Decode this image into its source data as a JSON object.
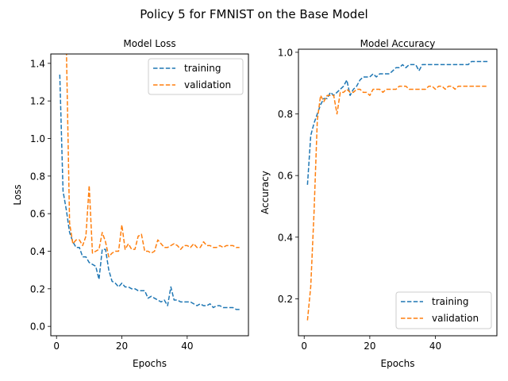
{
  "figure": {
    "suptitle": "Policy 5 for FMNIST on the Base Model"
  },
  "colors": {
    "training": "#1f77b4",
    "validation": "#ff7f0e"
  },
  "chart_data": [
    {
      "type": "line",
      "title": "Model Loss",
      "xlabel": "Epochs",
      "ylabel": "Loss",
      "xlim": [
        -1.75,
        58.75
      ],
      "ylim": [
        -0.05,
        1.45
      ],
      "xticks": [
        0,
        20,
        40
      ],
      "yticks": [
        0.0,
        0.2,
        0.4,
        0.6,
        0.8,
        1.0,
        1.2,
        1.4
      ],
      "ytick_labels": [
        "0.0",
        "0.2",
        "0.4",
        "0.6",
        "0.8",
        "1.0",
        "1.2",
        "1.4"
      ],
      "legend_position": "top-right",
      "grid": false,
      "series": [
        {
          "name": "training",
          "color": "#1f77b4",
          "x": [
            1,
            2,
            3,
            4,
            5,
            6,
            7,
            8,
            9,
            10,
            11,
            12,
            13,
            14,
            15,
            16,
            17,
            18,
            19,
            20,
            21,
            22,
            23,
            24,
            25,
            26,
            27,
            28,
            29,
            30,
            31,
            32,
            33,
            34,
            35,
            36,
            37,
            38,
            39,
            40,
            41,
            42,
            43,
            44,
            45,
            46,
            47,
            48,
            49,
            50,
            51,
            52,
            53,
            54,
            55,
            56
          ],
          "values": [
            1.34,
            0.72,
            0.62,
            0.5,
            0.45,
            0.42,
            0.42,
            0.37,
            0.37,
            0.34,
            0.33,
            0.32,
            0.25,
            0.41,
            0.41,
            0.3,
            0.24,
            0.23,
            0.21,
            0.23,
            0.21,
            0.21,
            0.2,
            0.2,
            0.19,
            0.19,
            0.19,
            0.15,
            0.16,
            0.15,
            0.14,
            0.13,
            0.14,
            0.11,
            0.21,
            0.14,
            0.14,
            0.13,
            0.13,
            0.13,
            0.13,
            0.12,
            0.11,
            0.12,
            0.11,
            0.11,
            0.12,
            0.1,
            0.11,
            0.11,
            0.1,
            0.1,
            0.1,
            0.1,
            0.09,
            0.09
          ]
        },
        {
          "name": "validation",
          "color": "#ff7f0e",
          "x": [
            2,
            3,
            4,
            5,
            6,
            7,
            8,
            9,
            10,
            11,
            12,
            13,
            14,
            15,
            16,
            17,
            18,
            19,
            20,
            21,
            22,
            23,
            24,
            25,
            26,
            27,
            28,
            29,
            30,
            31,
            32,
            33,
            34,
            35,
            36,
            37,
            38,
            39,
            40,
            41,
            42,
            43,
            44,
            45,
            46,
            47,
            48,
            49,
            50,
            51,
            52,
            53,
            54,
            55,
            56
          ],
          "values": [
            2.1,
            1.5,
            0.55,
            0.44,
            0.46,
            0.46,
            0.43,
            0.48,
            0.75,
            0.39,
            0.4,
            0.41,
            0.5,
            0.45,
            0.37,
            0.39,
            0.4,
            0.4,
            0.54,
            0.41,
            0.44,
            0.41,
            0.41,
            0.48,
            0.49,
            0.4,
            0.4,
            0.39,
            0.4,
            0.46,
            0.44,
            0.42,
            0.42,
            0.43,
            0.44,
            0.43,
            0.41,
            0.43,
            0.43,
            0.42,
            0.44,
            0.42,
            0.42,
            0.45,
            0.43,
            0.43,
            0.42,
            0.42,
            0.43,
            0.42,
            0.43,
            0.43,
            0.43,
            0.42,
            0.42
          ]
        }
      ]
    },
    {
      "type": "line",
      "title": "Model Accuracy",
      "xlabel": "Epochs",
      "ylabel": "Accuracy",
      "xlim": [
        -1.75,
        58.75
      ],
      "ylim": [
        0.08,
        1.01
      ],
      "xticks": [
        0,
        20,
        40
      ],
      "yticks": [
        0.2,
        0.4,
        0.6,
        0.8,
        1.0
      ],
      "ytick_labels": [
        "0.2",
        "0.4",
        "0.6",
        "0.8",
        "1.0"
      ],
      "legend_position": "bottom-right",
      "grid": false,
      "series": [
        {
          "name": "training",
          "color": "#1f77b4",
          "x": [
            1,
            2,
            3,
            4,
            5,
            6,
            7,
            8,
            9,
            10,
            11,
            12,
            13,
            14,
            15,
            16,
            17,
            18,
            19,
            20,
            21,
            22,
            23,
            24,
            25,
            26,
            27,
            28,
            29,
            30,
            31,
            32,
            33,
            34,
            35,
            36,
            37,
            38,
            39,
            40,
            41,
            42,
            43,
            44,
            45,
            46,
            47,
            48,
            49,
            50,
            51,
            52,
            53,
            54,
            55,
            56
          ],
          "values": [
            0.57,
            0.73,
            0.77,
            0.8,
            0.83,
            0.85,
            0.85,
            0.87,
            0.86,
            0.87,
            0.88,
            0.89,
            0.91,
            0.86,
            0.88,
            0.89,
            0.91,
            0.92,
            0.92,
            0.92,
            0.93,
            0.92,
            0.93,
            0.93,
            0.93,
            0.93,
            0.94,
            0.95,
            0.95,
            0.96,
            0.95,
            0.96,
            0.96,
            0.96,
            0.94,
            0.96,
            0.96,
            0.96,
            0.96,
            0.96,
            0.96,
            0.96,
            0.96,
            0.96,
            0.96,
            0.96,
            0.96,
            0.96,
            0.96,
            0.96,
            0.97,
            0.97,
            0.97,
            0.97,
            0.97,
            0.97
          ]
        },
        {
          "name": "validation",
          "color": "#ff7f0e",
          "x": [
            1,
            2,
            3,
            4,
            5,
            6,
            7,
            8,
            9,
            10,
            11,
            12,
            13,
            14,
            15,
            16,
            17,
            18,
            19,
            20,
            21,
            22,
            23,
            24,
            25,
            26,
            27,
            28,
            29,
            30,
            31,
            32,
            33,
            34,
            35,
            36,
            37,
            38,
            39,
            40,
            41,
            42,
            43,
            44,
            45,
            46,
            47,
            48,
            49,
            50,
            51,
            52,
            53,
            54,
            55,
            56
          ],
          "values": [
            0.13,
            0.24,
            0.48,
            0.78,
            0.86,
            0.84,
            0.86,
            0.86,
            0.86,
            0.8,
            0.87,
            0.87,
            0.88,
            0.87,
            0.87,
            0.88,
            0.88,
            0.87,
            0.87,
            0.86,
            0.88,
            0.88,
            0.88,
            0.87,
            0.88,
            0.88,
            0.88,
            0.88,
            0.89,
            0.89,
            0.89,
            0.88,
            0.88,
            0.88,
            0.88,
            0.88,
            0.88,
            0.89,
            0.89,
            0.88,
            0.89,
            0.89,
            0.88,
            0.89,
            0.89,
            0.88,
            0.89,
            0.89,
            0.89,
            0.89,
            0.89,
            0.89,
            0.89,
            0.89,
            0.89,
            0.89
          ]
        }
      ]
    }
  ]
}
